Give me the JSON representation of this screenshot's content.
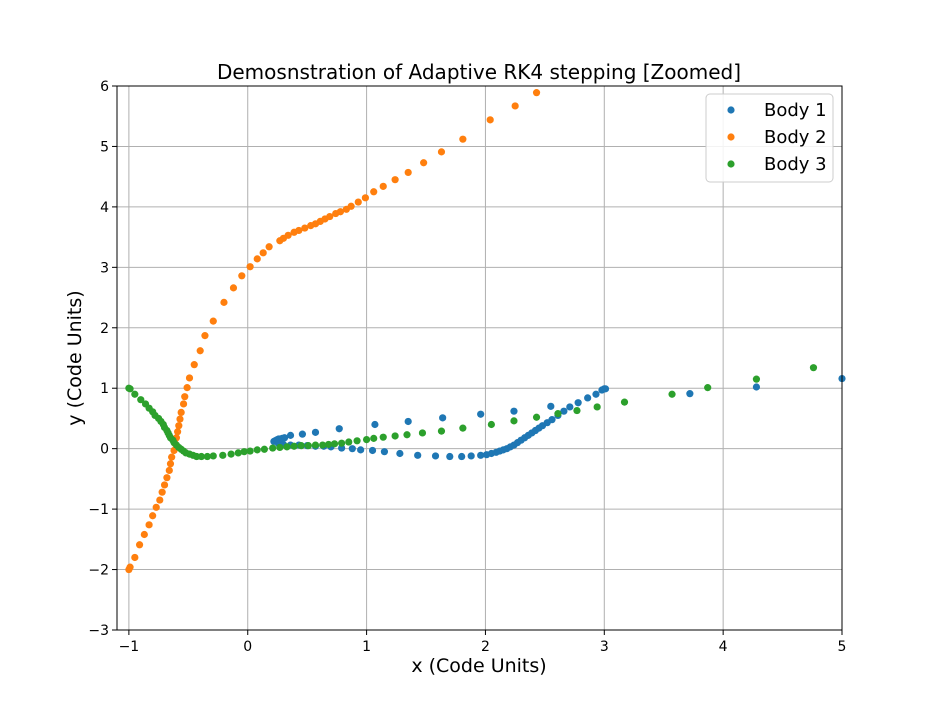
{
  "chart_data": {
    "type": "scatter",
    "title": "Demosnstration of Adaptive RK4 stepping [Zoomed]",
    "xlabel": "x (Code Units)",
    "ylabel": "y (Code Units)",
    "xlim": [
      -1.1,
      5
    ],
    "ylim": [
      -3,
      6
    ],
    "xticks": [
      "−1",
      "0",
      "1",
      "2",
      "3",
      "4",
      "5"
    ],
    "yticks": [
      "−3",
      "−2",
      "−1",
      "0",
      "1",
      "2",
      "3",
      "4",
      "5",
      "6"
    ],
    "grid": true,
    "legend_position": "top-right",
    "series": [
      {
        "name": "Body 1",
        "color": "#1f77b4",
        "points": [
          [
            0.22,
            0.12
          ],
          [
            0.23,
            0.13
          ],
          [
            0.24,
            0.14
          ],
          [
            0.25,
            0.15
          ],
          [
            0.26,
            0.16
          ],
          [
            0.27,
            0.16
          ],
          [
            0.29,
            0.17
          ],
          [
            0.31,
            0.18
          ],
          [
            0.36,
            0.22
          ],
          [
            0.46,
            0.24
          ],
          [
            0.57,
            0.27
          ],
          [
            0.77,
            0.33
          ],
          [
            1.07,
            0.4
          ],
          [
            1.35,
            0.45
          ],
          [
            1.64,
            0.51
          ],
          [
            1.96,
            0.57
          ],
          [
            2.24,
            0.62
          ],
          [
            0.26,
            0.08
          ],
          [
            0.3,
            0.07
          ],
          [
            0.36,
            0.06
          ],
          [
            0.43,
            0.06
          ],
          [
            0.5,
            0.05
          ],
          [
            0.57,
            0.04
          ],
          [
            0.64,
            0.04
          ],
          [
            0.7,
            0.03
          ],
          [
            0.79,
            0.01
          ],
          [
            0.88,
            0.0
          ],
          [
            0.95,
            -0.02
          ],
          [
            1.05,
            -0.03
          ],
          [
            1.15,
            -0.05
          ],
          [
            1.28,
            -0.08
          ],
          [
            1.43,
            -0.11
          ],
          [
            1.58,
            -0.12
          ],
          [
            1.7,
            -0.13
          ],
          [
            1.8,
            -0.13
          ],
          [
            1.88,
            -0.12
          ],
          [
            1.96,
            -0.11
          ],
          [
            2.01,
            -0.1
          ],
          [
            2.05,
            -0.08
          ],
          [
            2.09,
            -0.06
          ],
          [
            2.12,
            -0.04
          ],
          [
            2.15,
            -0.02
          ],
          [
            2.18,
            0.0
          ],
          [
            2.21,
            0.03
          ],
          [
            2.24,
            0.06
          ],
          [
            2.27,
            0.1
          ],
          [
            2.3,
            0.14
          ],
          [
            2.33,
            0.18
          ],
          [
            2.36,
            0.22
          ],
          [
            2.39,
            0.26
          ],
          [
            2.42,
            0.3
          ],
          [
            2.45,
            0.34
          ],
          [
            2.48,
            0.38
          ],
          [
            2.52,
            0.43
          ],
          [
            2.56,
            0.48
          ],
          [
            2.61,
            0.55
          ],
          [
            2.66,
            0.62
          ],
          [
            2.71,
            0.69
          ],
          [
            2.78,
            0.76
          ],
          [
            2.86,
            0.84
          ],
          [
            2.93,
            0.9
          ],
          [
            2.98,
            0.97
          ],
          [
            3.0,
            0.99
          ],
          [
            2.55,
            0.7
          ],
          [
            3.01,
            0.99
          ],
          [
            3.72,
            0.91
          ],
          [
            4.28,
            1.02
          ],
          [
            5.0,
            1.16
          ]
        ]
      },
      {
        "name": "Body 2",
        "color": "#ff7f0e",
        "points": [
          [
            -1.0,
            -2.0
          ],
          [
            -0.99,
            -1.96
          ],
          [
            -0.95,
            -1.8
          ],
          [
            -0.91,
            -1.59
          ],
          [
            -0.87,
            -1.42
          ],
          [
            -0.83,
            -1.26
          ],
          [
            -0.8,
            -1.11
          ],
          [
            -0.77,
            -0.97
          ],
          [
            -0.74,
            -0.85
          ],
          [
            -0.72,
            -0.72
          ],
          [
            -0.7,
            -0.6
          ],
          [
            -0.68,
            -0.48
          ],
          [
            -0.66,
            -0.36
          ],
          [
            -0.65,
            -0.25
          ],
          [
            -0.64,
            -0.14
          ],
          [
            -0.62,
            -0.03
          ],
          [
            -0.61,
            0.08
          ],
          [
            -0.6,
            0.18
          ],
          [
            -0.59,
            0.28
          ],
          [
            -0.58,
            0.38
          ],
          [
            -0.57,
            0.49
          ],
          [
            -0.56,
            0.6
          ],
          [
            -0.54,
            0.74
          ],
          [
            -0.53,
            0.86
          ],
          [
            -0.51,
            1.01
          ],
          [
            -0.49,
            1.17
          ],
          [
            -0.45,
            1.39
          ],
          [
            -0.4,
            1.62
          ],
          [
            -0.36,
            1.87
          ],
          [
            -0.29,
            2.11
          ],
          [
            -0.2,
            2.42
          ],
          [
            -0.12,
            2.66
          ],
          [
            -0.05,
            2.86
          ],
          [
            0.02,
            3.01
          ],
          [
            0.08,
            3.14
          ],
          [
            0.13,
            3.24
          ],
          [
            0.18,
            3.34
          ],
          [
            0.27,
            3.44
          ],
          [
            0.3,
            3.48
          ],
          [
            0.34,
            3.53
          ],
          [
            0.39,
            3.58
          ],
          [
            0.43,
            3.61
          ],
          [
            0.48,
            3.65
          ],
          [
            0.53,
            3.69
          ],
          [
            0.57,
            3.72
          ],
          [
            0.61,
            3.76
          ],
          [
            0.65,
            3.8
          ],
          [
            0.69,
            3.84
          ],
          [
            0.74,
            3.89
          ],
          [
            0.78,
            3.92
          ],
          [
            0.83,
            3.96
          ],
          [
            0.87,
            4.01
          ],
          [
            0.93,
            4.08
          ],
          [
            0.99,
            4.15
          ],
          [
            1.06,
            4.25
          ],
          [
            1.14,
            4.34
          ],
          [
            1.24,
            4.45
          ],
          [
            1.35,
            4.57
          ],
          [
            1.48,
            4.73
          ],
          [
            1.63,
            4.91
          ],
          [
            1.81,
            5.12
          ],
          [
            2.04,
            5.44
          ],
          [
            2.25,
            5.67
          ],
          [
            2.43,
            5.89
          ]
        ]
      },
      {
        "name": "Body 3",
        "color": "#2ca02c",
        "points": [
          [
            -1.0,
            1.0
          ],
          [
            -0.99,
            0.99
          ],
          [
            -0.95,
            0.9
          ],
          [
            -0.9,
            0.81
          ],
          [
            -0.86,
            0.74
          ],
          [
            -0.83,
            0.67
          ],
          [
            -0.8,
            0.61
          ],
          [
            -0.78,
            0.55
          ],
          [
            -0.75,
            0.5
          ],
          [
            -0.73,
            0.45
          ],
          [
            -0.71,
            0.4
          ],
          [
            -0.7,
            0.35
          ],
          [
            -0.68,
            0.3
          ],
          [
            -0.67,
            0.26
          ],
          [
            -0.66,
            0.22
          ],
          [
            -0.65,
            0.18
          ],
          [
            -0.63,
            0.14
          ],
          [
            -0.62,
            0.1
          ],
          [
            -0.6,
            0.06
          ],
          [
            -0.58,
            0.02
          ],
          [
            -0.56,
            -0.01
          ],
          [
            -0.54,
            -0.04
          ],
          [
            -0.52,
            -0.07
          ],
          [
            -0.49,
            -0.09
          ],
          [
            -0.46,
            -0.11
          ],
          [
            -0.43,
            -0.13
          ],
          [
            -0.39,
            -0.13
          ],
          [
            -0.34,
            -0.13
          ],
          [
            -0.29,
            -0.12
          ],
          [
            -0.21,
            -0.11
          ],
          [
            -0.14,
            -0.09
          ],
          [
            -0.08,
            -0.07
          ],
          [
            -0.03,
            -0.05
          ],
          [
            0.02,
            -0.04
          ],
          [
            0.08,
            -0.02
          ],
          [
            0.14,
            -0.01
          ],
          [
            0.21,
            0.01
          ],
          [
            0.27,
            0.02
          ],
          [
            0.33,
            0.03
          ],
          [
            0.39,
            0.04
          ],
          [
            0.45,
            0.05
          ],
          [
            0.51,
            0.05
          ],
          [
            0.57,
            0.06
          ],
          [
            0.63,
            0.06
          ],
          [
            0.68,
            0.07
          ],
          [
            0.73,
            0.08
          ],
          [
            0.79,
            0.09
          ],
          [
            0.85,
            0.11
          ],
          [
            0.92,
            0.13
          ],
          [
            1.0,
            0.15
          ],
          [
            1.06,
            0.17
          ],
          [
            1.14,
            0.19
          ],
          [
            1.24,
            0.21
          ],
          [
            1.34,
            0.23
          ],
          [
            1.47,
            0.26
          ],
          [
            1.63,
            0.29
          ],
          [
            1.81,
            0.34
          ],
          [
            2.05,
            0.4
          ],
          [
            2.24,
            0.46
          ],
          [
            2.43,
            0.52
          ],
          [
            2.61,
            0.58
          ],
          [
            2.77,
            0.63
          ],
          [
            2.94,
            0.69
          ],
          [
            3.17,
            0.77
          ],
          [
            3.57,
            0.9
          ],
          [
            3.87,
            1.01
          ],
          [
            4.28,
            1.15
          ],
          [
            4.76,
            1.34
          ]
        ]
      }
    ]
  }
}
